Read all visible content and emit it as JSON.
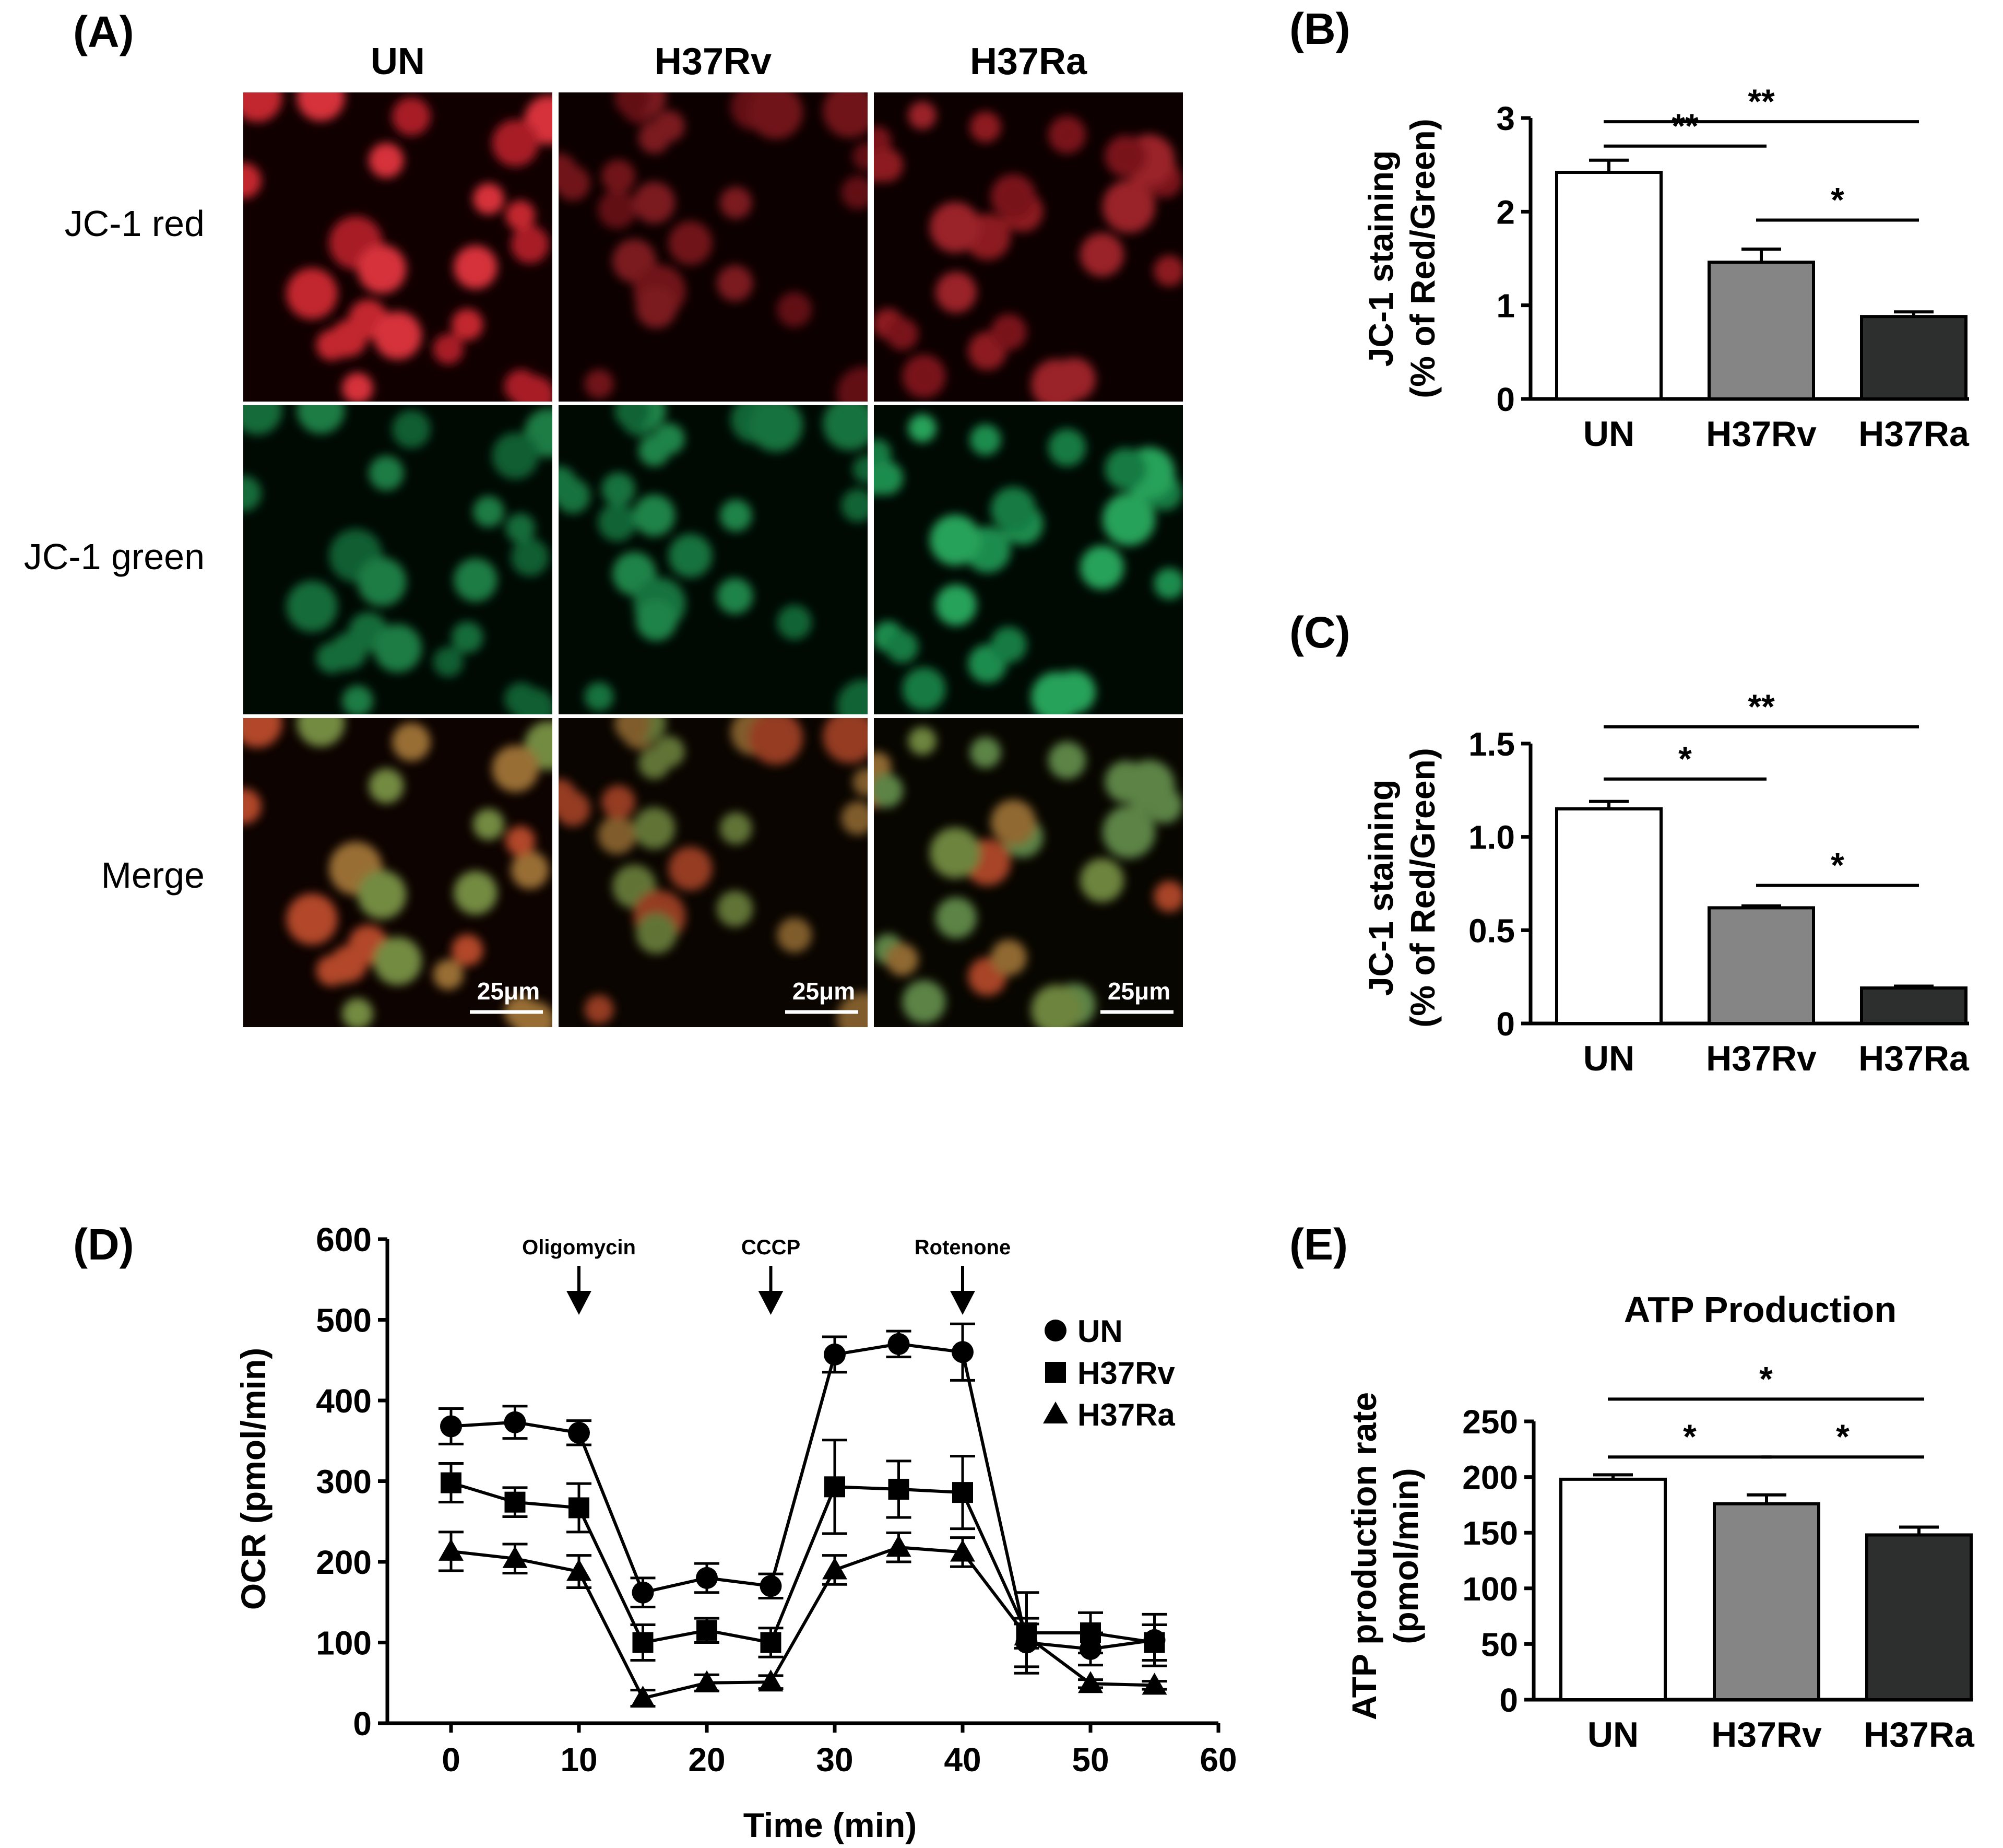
{
  "colors": {
    "un_bar": "#ffffff",
    "h37rv_bar": "#858585",
    "h37ra_bar": "#2d2f2e",
    "jc1_red": "#e8202a",
    "jc1_green": "#16a84e"
  },
  "panel_a": {
    "letter": "(A)",
    "columns": [
      "UN",
      "H37Rv",
      "H37Ra"
    ],
    "rows": [
      {
        "label": "JC-1 red",
        "color": "#e8202a"
      },
      {
        "label": "JC-1 green",
        "color": "#16a84e"
      },
      {
        "label": "Merge",
        "color": "#000000"
      }
    ],
    "scale_bar": "25μm"
  },
  "chart_data": [
    {
      "id": "B",
      "letter": "(B)",
      "type": "bar",
      "categories": [
        "UN",
        "H37Rv",
        "H37Ra"
      ],
      "values": [
        2.42,
        1.46,
        0.88
      ],
      "errors": [
        0.13,
        0.14,
        0.05
      ],
      "ylabel": [
        "JC-1 staining",
        "(% of Red/Green)"
      ],
      "ylim": [
        0,
        3
      ],
      "yticks": [
        0,
        1,
        2,
        3
      ],
      "yticklabels": [
        "0",
        "1",
        "2",
        "3"
      ],
      "significance": [
        {
          "from": 0,
          "to": 2,
          "y": 2.96,
          "label": "**"
        },
        {
          "from": 0,
          "to": 1,
          "y": 2.7,
          "label": "**"
        },
        {
          "from": 1,
          "to": 2,
          "y": 1.91,
          "label": "*"
        }
      ]
    },
    {
      "id": "C",
      "letter": "(C)",
      "type": "bar",
      "categories": [
        "UN",
        "H37Rv",
        "H37Ra"
      ],
      "values": [
        1.15,
        0.62,
        0.19
      ],
      "errors": [
        0.04,
        0.01,
        0.01
      ],
      "ylabel": [
        "JC-1 staining",
        "(% of Red/Green)"
      ],
      "ylim": [
        0,
        1.5
      ],
      "yticks": [
        0,
        0.5,
        1.0,
        1.5
      ],
      "yticklabels": [
        "0",
        "0.5",
        "1.0",
        "1.5"
      ],
      "significance": [
        {
          "from": 0,
          "to": 2,
          "y": 1.59,
          "label": "**"
        },
        {
          "from": 0,
          "to": 1,
          "y": 1.31,
          "label": "*"
        },
        {
          "from": 1,
          "to": 2,
          "y": 0.74,
          "label": "*"
        }
      ]
    },
    {
      "id": "D",
      "letter": "(D)",
      "type": "line",
      "xlabel": "Time (min)",
      "ylabel": "OCR (pmol/min)",
      "xlim": [
        -5,
        60
      ],
      "ylim": [
        0,
        600
      ],
      "xticks": [
        0,
        10,
        20,
        30,
        40,
        50,
        60
      ],
      "yticks": [
        0,
        100,
        200,
        300,
        400,
        500,
        600
      ],
      "x": [
        0,
        5,
        10,
        15,
        20,
        25,
        30,
        35,
        40,
        45,
        50,
        55
      ],
      "series": [
        {
          "name": "UN",
          "marker": "circle",
          "values": [
            368,
            373,
            360,
            162,
            180,
            170,
            457,
            470,
            460,
            100,
            92,
            103
          ],
          "errors": [
            22,
            20,
            15,
            18,
            18,
            15,
            22,
            16,
            35,
            30,
            20,
            32
          ]
        },
        {
          "name": "H37Rv",
          "marker": "square",
          "values": [
            298,
            274,
            267,
            100,
            115,
            100,
            293,
            290,
            286,
            112,
            112,
            100
          ],
          "errors": [
            24,
            18,
            30,
            22,
            15,
            18,
            58,
            35,
            45,
            50,
            25,
            22
          ]
        },
        {
          "name": "H37Ra",
          "marker": "triangle",
          "values": [
            213,
            204,
            188,
            31,
            50,
            51,
            190,
            218,
            212,
            108,
            49,
            47
          ],
          "errors": [
            24,
            18,
            20,
            10,
            10,
            8,
            18,
            18,
            18,
            15,
            5,
            5
          ]
        }
      ],
      "annotations": [
        {
          "x": 10,
          "label": "Oligomycin"
        },
        {
          "x": 25,
          "label": "CCCP"
        },
        {
          "x": 40,
          "label": "Rotenone"
        }
      ],
      "legend": "top-right"
    },
    {
      "id": "E",
      "letter": "(E)",
      "type": "bar",
      "title": "ATP Production",
      "categories": [
        "UN",
        "H37Rv",
        "H37Ra"
      ],
      "values": [
        198,
        176,
        148
      ],
      "errors": [
        4,
        8,
        7
      ],
      "ylabel": [
        "ATP production rate",
        "(pmol/min)"
      ],
      "ylim": [
        0,
        250
      ],
      "yticks": [
        0,
        50,
        100,
        150,
        200,
        250
      ],
      "yticklabels": [
        "0",
        "50",
        "100",
        "150",
        "200",
        "250"
      ],
      "significance": [
        {
          "from": 0,
          "to": 2,
          "y": 270,
          "label": "*"
        },
        {
          "from": 0,
          "to": 1,
          "y": 218,
          "label": "*"
        },
        {
          "from": 1,
          "to": 2,
          "y": 218,
          "label": "*"
        }
      ]
    }
  ]
}
